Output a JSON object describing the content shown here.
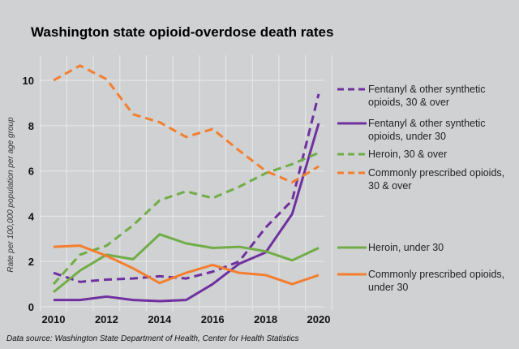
{
  "chart_data": {
    "type": "line",
    "title": "Washington state opioid-overdose death rates",
    "ylabel": "Rate per 100,000 population per age group",
    "xlabel": "",
    "source": "Data source: Washington State Department of Health, Center for Health Statistics",
    "x": [
      2010,
      2011,
      2012,
      2013,
      2014,
      2015,
      2016,
      2017,
      2018,
      2019,
      2020
    ],
    "xticks": [
      "2010",
      "2012",
      "2014",
      "2016",
      "2018",
      "2020"
    ],
    "yticks": [
      "0",
      "2",
      "4",
      "6",
      "8",
      "10"
    ],
    "xlim": [
      2010,
      2020
    ],
    "ylim": [
      0,
      11
    ],
    "grid": true,
    "legend_position": "right",
    "series": [
      {
        "name": "Fentanyl & other synthetic opioids, 30 & over",
        "color": "#7030a0",
        "dash": true,
        "values": [
          1.5,
          1.1,
          1.2,
          1.25,
          1.35,
          1.25,
          1.55,
          2.0,
          3.5,
          4.7,
          9.4
        ]
      },
      {
        "name": "Fentanyl & other synthetic opioids, under 30",
        "color": "#7030a0",
        "dash": false,
        "values": [
          0.3,
          0.3,
          0.45,
          0.3,
          0.25,
          0.3,
          1.0,
          1.9,
          2.4,
          4.1,
          8.1
        ]
      },
      {
        "name": "Heroin, 30 & over",
        "color": "#70ad47",
        "dash": true,
        "values": [
          1.0,
          2.3,
          2.7,
          3.6,
          4.7,
          5.1,
          4.8,
          5.3,
          5.9,
          6.3,
          6.8
        ]
      },
      {
        "name": "Commonly prescribed opioids, 30 & over",
        "color": "#f47e2e",
        "dash": true,
        "values": [
          10.0,
          10.65,
          10.05,
          8.5,
          8.15,
          7.5,
          7.85,
          6.9,
          6.0,
          5.5,
          6.2
        ]
      },
      {
        "name": "Heroin, under 30",
        "color": "#70ad47",
        "dash": false,
        "values": [
          0.65,
          1.6,
          2.3,
          2.1,
          3.2,
          2.8,
          2.6,
          2.65,
          2.45,
          2.05,
          2.6
        ]
      },
      {
        "name": "Commonly prescribed opioids, under 30",
        "color": "#f47e2e",
        "dash": false,
        "values": [
          2.65,
          2.7,
          2.25,
          1.7,
          1.05,
          1.5,
          1.85,
          1.5,
          1.4,
          1.0,
          1.4
        ]
      }
    ]
  }
}
